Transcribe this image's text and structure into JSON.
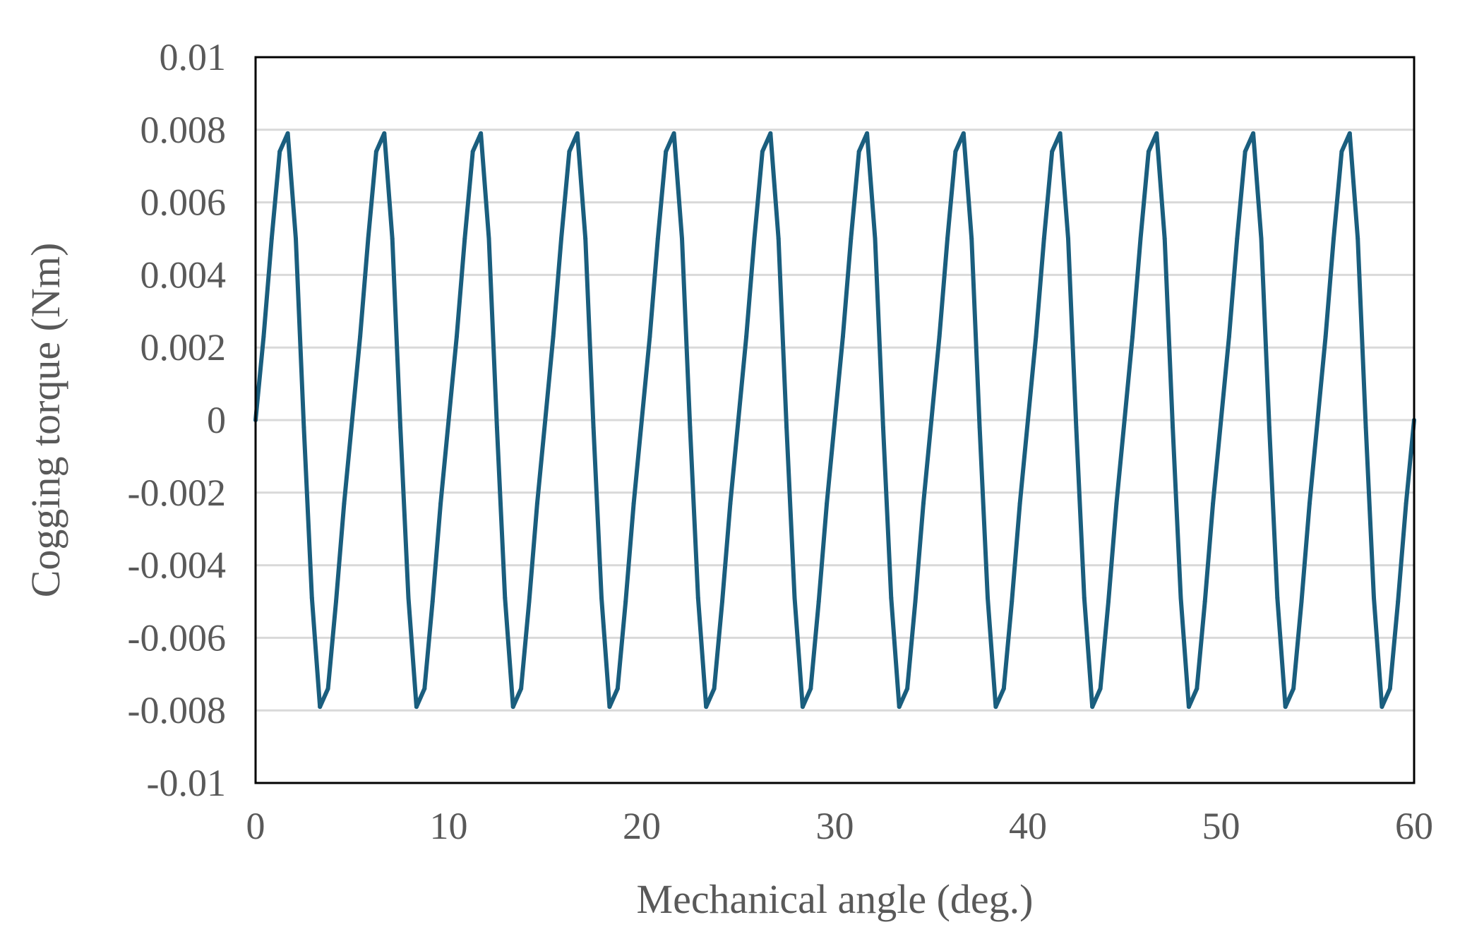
{
  "chart_data": {
    "type": "line",
    "title": "",
    "xlabel": "Mechanical angle (deg.)",
    "ylabel": "Cogging torque (Nm)",
    "xlim": [
      0,
      60
    ],
    "ylim": [
      -0.01,
      0.01
    ],
    "x_ticks": [
      0,
      10,
      20,
      30,
      40,
      50,
      60
    ],
    "x_tick_labels": [
      "0",
      "10",
      "20",
      "30",
      "40",
      "50",
      "60"
    ],
    "y_ticks": [
      0.01,
      0.008,
      0.006,
      0.004,
      0.002,
      0,
      -0.002,
      -0.004,
      -0.006,
      -0.008,
      -0.01
    ],
    "y_tick_labels": [
      "0.01",
      "0.008",
      "0.006",
      "0.004",
      "0.002",
      "0",
      "-0.002",
      "-0.004",
      "-0.006",
      "-0.008",
      "-0.01"
    ],
    "grid": "horizontal",
    "legend": "none",
    "line_color": "#1a5e7e",
    "grid_color": "#d9d9d9",
    "series": [
      {
        "x": [
          0,
          0.4167,
          0.8333,
          1.25,
          1.6667,
          2.0833,
          2.5,
          2.9167,
          3.3333,
          3.75,
          4.1667,
          4.5833,
          5,
          5.4167,
          5.8333,
          6.25,
          6.6667,
          7.0833,
          7.5,
          7.9167,
          8.3333,
          8.75,
          9.1667,
          9.5833,
          10,
          10.4167,
          10.8333,
          11.25,
          11.6667,
          12.0833,
          12.5,
          12.9167,
          13.3333,
          13.75,
          14.1667,
          14.5833,
          15,
          15.4167,
          15.8333,
          16.25,
          16.6667,
          17.0833,
          17.5,
          17.9167,
          18.3333,
          18.75,
          19.1667,
          19.5833,
          20,
          20.4167,
          20.8333,
          21.25,
          21.6667,
          22.0833,
          22.5,
          22.9167,
          23.3333,
          23.75,
          24.1667,
          24.5833,
          25,
          25.4167,
          25.8333,
          26.25,
          26.6667,
          27.0833,
          27.5,
          27.9167,
          28.3333,
          28.75,
          29.1667,
          29.5833,
          30,
          30.4167,
          30.8333,
          31.25,
          31.6667,
          32.0833,
          32.5,
          32.9167,
          33.3333,
          33.75,
          34.1667,
          34.5833,
          35,
          35.4167,
          35.8333,
          36.25,
          36.6667,
          37.0833,
          37.5,
          37.9167,
          38.3333,
          38.75,
          39.1667,
          39.5833,
          40,
          40.4167,
          40.8333,
          41.25,
          41.6667,
          42.0833,
          42.5,
          42.9167,
          43.3333,
          43.75,
          44.1667,
          44.5833,
          45,
          45.4167,
          45.8333,
          46.25,
          46.6667,
          47.0833,
          47.5,
          47.9167,
          48.3333,
          48.75,
          49.1667,
          49.5833,
          50,
          50.4167,
          50.8333,
          51.25,
          51.6667,
          52.0833,
          52.5,
          52.9167,
          53.3333,
          53.75,
          54.1667,
          54.5833,
          55,
          55.4167,
          55.8333,
          56.25,
          56.6667,
          57.0833,
          57.5,
          57.9167,
          58.3333,
          58.75,
          59.1667,
          59.5833,
          60
        ],
        "y": [
          0,
          0.0023,
          0.005,
          0.0074,
          0.0079,
          0.005,
          -0.0002,
          -0.0049,
          -0.0079,
          -0.0074,
          -0.005,
          -0.0023,
          0,
          0.0023,
          0.005,
          0.0074,
          0.0079,
          0.005,
          -0.0002,
          -0.0049,
          -0.0079,
          -0.0074,
          -0.005,
          -0.0023,
          0,
          0.0023,
          0.005,
          0.0074,
          0.0079,
          0.005,
          -0.0002,
          -0.0049,
          -0.0079,
          -0.0074,
          -0.005,
          -0.0023,
          0,
          0.0023,
          0.005,
          0.0074,
          0.0079,
          0.005,
          -0.0002,
          -0.0049,
          -0.0079,
          -0.0074,
          -0.005,
          -0.0023,
          0,
          0.0023,
          0.005,
          0.0074,
          0.0079,
          0.005,
          -0.0002,
          -0.0049,
          -0.0079,
          -0.0074,
          -0.005,
          -0.0023,
          0,
          0.0023,
          0.005,
          0.0074,
          0.0079,
          0.005,
          -0.0002,
          -0.0049,
          -0.0079,
          -0.0074,
          -0.005,
          -0.0023,
          0,
          0.0023,
          0.005,
          0.0074,
          0.0079,
          0.005,
          -0.0002,
          -0.0049,
          -0.0079,
          -0.0074,
          -0.005,
          -0.0023,
          0,
          0.0023,
          0.005,
          0.0074,
          0.0079,
          0.005,
          -0.0002,
          -0.0049,
          -0.0079,
          -0.0074,
          -0.005,
          -0.0023,
          0,
          0.0023,
          0.005,
          0.0074,
          0.0079,
          0.005,
          -0.0002,
          -0.0049,
          -0.0079,
          -0.0074,
          -0.005,
          -0.0023,
          0,
          0.0023,
          0.005,
          0.0074,
          0.0079,
          0.005,
          -0.0002,
          -0.0049,
          -0.0079,
          -0.0074,
          -0.005,
          -0.0023,
          0,
          0.0023,
          0.005,
          0.0074,
          0.0079,
          0.005,
          -0.0002,
          -0.0049,
          -0.0079,
          -0.0074,
          -0.005,
          -0.0023,
          0,
          0.0023,
          0.005,
          0.0074,
          0.0079,
          0.005,
          -0.0002,
          -0.0049,
          -0.0079,
          -0.0074,
          -0.005,
          -0.0023,
          0
        ]
      }
    ]
  }
}
